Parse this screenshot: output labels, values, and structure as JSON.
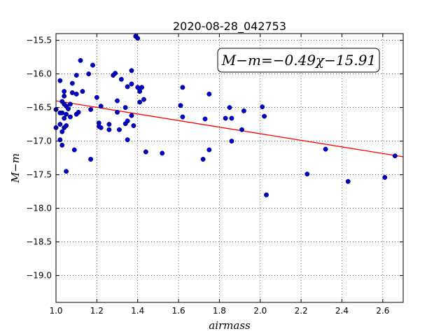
{
  "chart_data": {
    "type": "scatter",
    "title": "2020-08-28_042753",
    "xlabel": "airmass",
    "ylabel": "M−m",
    "xlim": [
      1.0,
      2.7
    ],
    "ylim": [
      -19.4,
      -15.4
    ],
    "y_inverted": false,
    "grid": true,
    "x_ticks": [
      1.0,
      1.2,
      1.4,
      1.6,
      1.8,
      2.0,
      2.2,
      2.4,
      2.6
    ],
    "x_tick_labels": [
      "1.0",
      "1.2",
      "1.4",
      "1.6",
      "1.8",
      "2.0",
      "2.2",
      "2.4",
      "2.6"
    ],
    "y_ticks": [
      -15.5,
      -16.0,
      -16.5,
      -17.0,
      -17.5,
      -18.0,
      -18.5,
      -19.0
    ],
    "y_tick_labels": [
      "−15.5",
      "−16.0",
      "−16.5",
      "−17.0",
      "−17.5",
      "−18.0",
      "−18.5",
      "−19.0"
    ],
    "annotation": "M−m=−0.49χ−15.91",
    "fit_line": {
      "slope": -0.49,
      "intercept": -15.91,
      "color": "#ff0000"
    },
    "point_color": "#0000cc",
    "points": [
      [
        1.0,
        -16.53
      ],
      [
        1.0,
        -16.8
      ],
      [
        1.02,
        -16.1
      ],
      [
        1.02,
        -16.58
      ],
      [
        1.02,
        -16.75
      ],
      [
        1.02,
        -16.98
      ],
      [
        1.03,
        -16.41
      ],
      [
        1.03,
        -16.58
      ],
      [
        1.03,
        -16.86
      ],
      [
        1.03,
        -17.06
      ],
      [
        1.04,
        -16.26
      ],
      [
        1.04,
        -16.33
      ],
      [
        1.04,
        -16.45
      ],
      [
        1.04,
        -16.66
      ],
      [
        1.04,
        -16.8
      ],
      [
        1.05,
        -16.48
      ],
      [
        1.05,
        -16.6
      ],
      [
        1.05,
        -16.77
      ],
      [
        1.05,
        -17.45
      ],
      [
        1.06,
        -16.52
      ],
      [
        1.07,
        -16.45
      ],
      [
        1.07,
        -16.64
      ],
      [
        1.08,
        -16.14
      ],
      [
        1.08,
        -16.28
      ],
      [
        1.09,
        -17.13
      ],
      [
        1.1,
        -16.3
      ],
      [
        1.1,
        -16.6
      ],
      [
        1.1,
        -16.02
      ],
      [
        1.11,
        -16.57
      ],
      [
        1.12,
        -15.8
      ],
      [
        1.13,
        -16.26
      ],
      [
        1.16,
        -16.0
      ],
      [
        1.17,
        -16.53
      ],
      [
        1.17,
        -17.27
      ],
      [
        1.18,
        -15.87
      ],
      [
        1.2,
        -16.35
      ],
      [
        1.21,
        -16.73
      ],
      [
        1.21,
        -16.78
      ],
      [
        1.22,
        -16.48
      ],
      [
        1.22,
        -16.8
      ],
      [
        1.26,
        -16.75
      ],
      [
        1.26,
        -16.83
      ],
      [
        1.28,
        -16.02
      ],
      [
        1.29,
        -15.99
      ],
      [
        1.3,
        -16.4
      ],
      [
        1.3,
        -16.57
      ],
      [
        1.31,
        -16.83
      ],
      [
        1.32,
        -16.08
      ],
      [
        1.34,
        -16.5
      ],
      [
        1.34,
        -16.74
      ],
      [
        1.35,
        -16.98
      ],
      [
        1.35,
        -16.7
      ],
      [
        1.35,
        -16.19
      ],
      [
        1.37,
        -16.15
      ],
      [
        1.37,
        -15.95
      ],
      [
        1.37,
        -16.62
      ],
      [
        1.38,
        -16.77
      ],
      [
        1.39,
        -15.44
      ],
      [
        1.4,
        -15.47
      ],
      [
        1.4,
        -16.2
      ],
      [
        1.41,
        -16.26
      ],
      [
        1.41,
        -16.42
      ],
      [
        1.42,
        -16.2
      ],
      [
        1.43,
        -16.38
      ],
      [
        1.44,
        -17.16
      ],
      [
        1.52,
        -17.18
      ],
      [
        1.61,
        -16.47
      ],
      [
        1.62,
        -16.64
      ],
      [
        1.62,
        -16.2
      ],
      [
        1.72,
        -17.27
      ],
      [
        1.73,
        -16.67
      ],
      [
        1.75,
        -16.3
      ],
      [
        1.75,
        -17.13
      ],
      [
        1.83,
        -16.66
      ],
      [
        1.85,
        -16.5
      ],
      [
        1.86,
        -16.66
      ],
      [
        1.86,
        -17.0
      ],
      [
        1.91,
        -16.83
      ],
      [
        1.92,
        -16.55
      ],
      [
        2.01,
        -16.49
      ],
      [
        2.02,
        -16.63
      ],
      [
        2.03,
        -17.8
      ],
      [
        2.23,
        -17.49
      ],
      [
        2.32,
        -17.12
      ],
      [
        2.43,
        -17.6
      ],
      [
        2.61,
        -17.54
      ],
      [
        2.66,
        -17.22
      ]
    ]
  }
}
